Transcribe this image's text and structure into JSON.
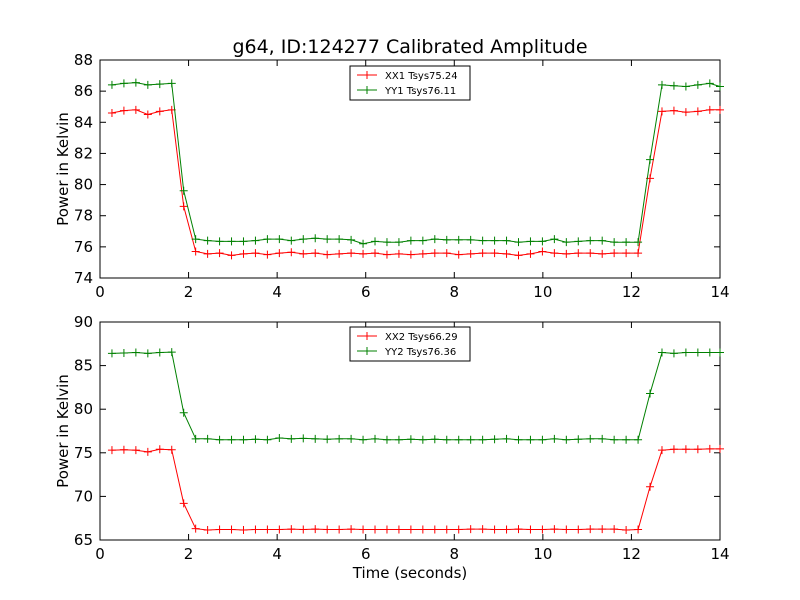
{
  "figure": {
    "title": "g64, ID:124277 Calibrated Amplitude"
  },
  "chart_data": [
    {
      "type": "line",
      "title": "g64, ID:124277 Calibrated Amplitude",
      "xlabel": "",
      "ylabel": "Power in Kelvin",
      "xlim": [
        0,
        14
      ],
      "ylim": [
        74,
        88
      ],
      "xticks": [
        0,
        2,
        4,
        6,
        8,
        10,
        12,
        14
      ],
      "yticks": [
        74,
        76,
        78,
        80,
        82,
        84,
        86,
        88
      ],
      "grid": false,
      "legend_position": "top-center",
      "x": [
        0.27,
        0.54,
        0.81,
        1.08,
        1.35,
        1.62,
        1.89,
        2.16,
        2.43,
        2.7,
        2.97,
        3.24,
        3.51,
        3.78,
        4.05,
        4.32,
        4.59,
        4.86,
        5.13,
        5.4,
        5.67,
        5.94,
        6.21,
        6.48,
        6.75,
        7.02,
        7.29,
        7.56,
        7.83,
        8.1,
        8.37,
        8.64,
        8.91,
        9.18,
        9.45,
        9.72,
        9.99,
        10.26,
        10.53,
        10.8,
        11.07,
        11.34,
        11.61,
        11.88,
        12.15,
        12.42,
        12.69,
        12.96,
        13.23,
        13.5,
        13.77,
        14.0
      ],
      "series": [
        {
          "name": "XX1 Tsys75.24",
          "color": "#ff0000",
          "values": [
            84.6,
            84.75,
            84.8,
            84.5,
            84.7,
            84.8,
            78.6,
            75.7,
            75.55,
            75.6,
            75.45,
            75.55,
            75.6,
            75.5,
            75.6,
            75.65,
            75.55,
            75.6,
            75.5,
            75.55,
            75.6,
            75.55,
            75.6,
            75.5,
            75.55,
            75.5,
            75.55,
            75.6,
            75.6,
            75.5,
            75.55,
            75.6,
            75.6,
            75.55,
            75.45,
            75.55,
            75.7,
            75.6,
            75.55,
            75.6,
            75.6,
            75.55,
            75.6,
            75.6,
            75.6,
            80.4,
            84.7,
            84.75,
            84.65,
            84.7,
            84.8,
            84.8
          ]
        },
        {
          "name": "YY1 Tsys76.11",
          "color": "#008000",
          "values": [
            86.4,
            86.5,
            86.55,
            86.4,
            86.45,
            86.5,
            79.6,
            76.5,
            76.4,
            76.35,
            76.35,
            76.35,
            76.4,
            76.5,
            76.5,
            76.4,
            76.5,
            76.55,
            76.5,
            76.5,
            76.45,
            76.2,
            76.35,
            76.3,
            76.3,
            76.4,
            76.4,
            76.5,
            76.45,
            76.45,
            76.45,
            76.4,
            76.4,
            76.4,
            76.3,
            76.35,
            76.35,
            76.5,
            76.3,
            76.35,
            76.4,
            76.4,
            76.3,
            76.3,
            76.3,
            81.6,
            86.4,
            86.35,
            86.3,
            86.4,
            86.5,
            86.3
          ]
        }
      ]
    },
    {
      "type": "line",
      "title": "",
      "xlabel": "Time (seconds)",
      "ylabel": "Power in Kelvin",
      "xlim": [
        0,
        14
      ],
      "ylim": [
        65,
        90
      ],
      "xticks": [
        0,
        2,
        4,
        6,
        8,
        10,
        12,
        14
      ],
      "yticks": [
        65,
        70,
        75,
        80,
        85,
        90
      ],
      "grid": false,
      "legend_position": "top-center",
      "x": [
        0.27,
        0.54,
        0.81,
        1.08,
        1.35,
        1.62,
        1.89,
        2.16,
        2.43,
        2.7,
        2.97,
        3.24,
        3.51,
        3.78,
        4.05,
        4.32,
        4.59,
        4.86,
        5.13,
        5.4,
        5.67,
        5.94,
        6.21,
        6.48,
        6.75,
        7.02,
        7.29,
        7.56,
        7.83,
        8.1,
        8.37,
        8.64,
        8.91,
        9.18,
        9.45,
        9.72,
        9.99,
        10.26,
        10.53,
        10.8,
        11.07,
        11.34,
        11.61,
        11.88,
        12.15,
        12.42,
        12.69,
        12.96,
        13.23,
        13.5,
        13.77,
        14.0
      ],
      "series": [
        {
          "name": "XX2 Tsys66.29",
          "color": "#ff0000",
          "values": [
            75.3,
            75.35,
            75.3,
            75.1,
            75.4,
            75.35,
            69.2,
            66.3,
            66.15,
            66.2,
            66.2,
            66.15,
            66.2,
            66.2,
            66.2,
            66.25,
            66.2,
            66.25,
            66.2,
            66.2,
            66.25,
            66.2,
            66.2,
            66.2,
            66.2,
            66.2,
            66.2,
            66.2,
            66.2,
            66.2,
            66.25,
            66.25,
            66.2,
            66.2,
            66.25,
            66.2,
            66.2,
            66.25,
            66.2,
            66.2,
            66.25,
            66.25,
            66.25,
            66.15,
            66.2,
            71.1,
            75.3,
            75.4,
            75.4,
            75.4,
            75.45,
            75.45
          ]
        },
        {
          "name": "YY2 Tsys76.36",
          "color": "#008000",
          "values": [
            86.4,
            86.45,
            86.5,
            86.4,
            86.5,
            86.55,
            79.6,
            76.6,
            76.6,
            76.5,
            76.5,
            76.5,
            76.55,
            76.5,
            76.7,
            76.6,
            76.65,
            76.6,
            76.55,
            76.6,
            76.6,
            76.5,
            76.6,
            76.5,
            76.5,
            76.55,
            76.5,
            76.55,
            76.5,
            76.5,
            76.5,
            76.5,
            76.55,
            76.6,
            76.5,
            76.5,
            76.5,
            76.6,
            76.5,
            76.55,
            76.6,
            76.6,
            76.5,
            76.5,
            76.5,
            81.8,
            86.5,
            86.4,
            86.5,
            86.5,
            86.5,
            86.5
          ]
        }
      ]
    }
  ]
}
